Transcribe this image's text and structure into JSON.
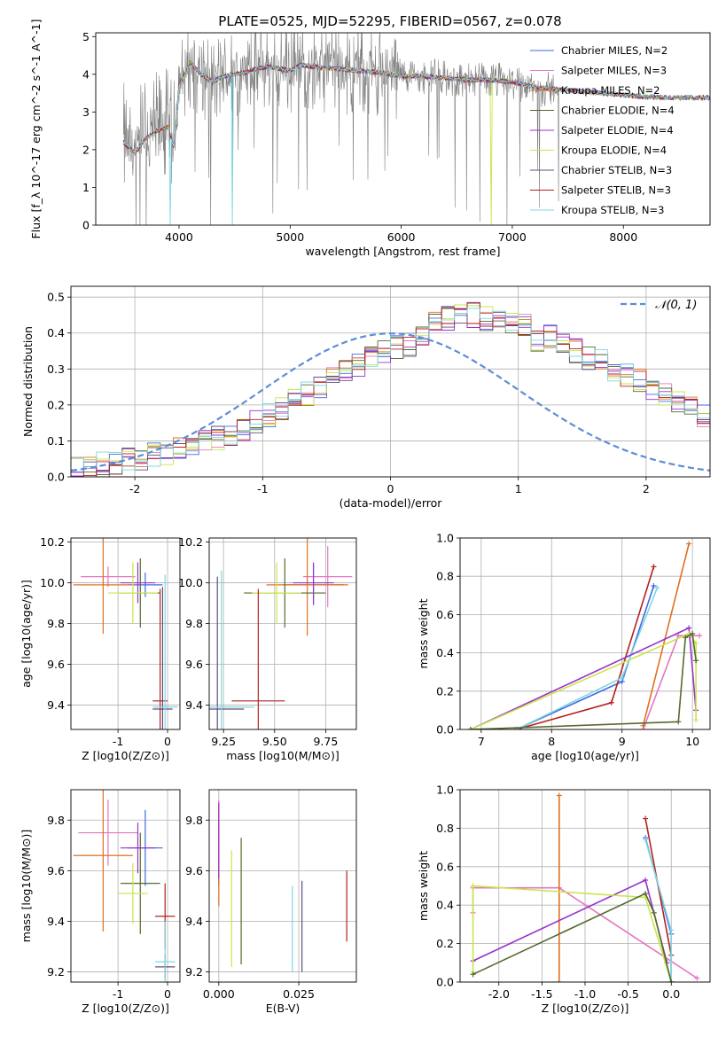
{
  "figure": {
    "title": "PLATE=0525, MJD=52295, FIBERID=0567, z=0.078"
  },
  "chart_data": [
    {
      "id": "spectrum",
      "type": "line",
      "xlabel": "wavelength [Angstrom, rest frame]",
      "ylabel": "Flux [f_λ 10^-17 erg cm^-2 s^-1 A^-1]",
      "xlim": [
        3250,
        8780
      ],
      "ylim": [
        0,
        5.1
      ],
      "xticks": [
        4000,
        5000,
        6000,
        7000,
        8000
      ],
      "yticks": [
        0,
        1,
        2,
        3,
        4,
        5
      ],
      "grid": false,
      "legend_position": "upper-right",
      "data_color": "#808080",
      "continuum": [
        [
          3500,
          2.2
        ],
        [
          3600,
          1.9
        ],
        [
          3700,
          2.3
        ],
        [
          3800,
          2.5
        ],
        [
          3900,
          2.6
        ],
        [
          3950,
          2.1
        ],
        [
          4000,
          3.7
        ],
        [
          4100,
          4.3
        ],
        [
          4200,
          4.0
        ],
        [
          4300,
          3.8
        ],
        [
          4400,
          3.95
        ],
        [
          4500,
          4.0
        ],
        [
          4600,
          4.05
        ],
        [
          4700,
          4.15
        ],
        [
          4800,
          4.2
        ],
        [
          4900,
          4.15
        ],
        [
          5000,
          4.1
        ],
        [
          5100,
          4.25
        ],
        [
          5200,
          4.2
        ],
        [
          5400,
          4.15
        ],
        [
          5600,
          4.1
        ],
        [
          5800,
          4.05
        ],
        [
          6000,
          3.95
        ],
        [
          6200,
          3.95
        ],
        [
          6400,
          3.9
        ],
        [
          6600,
          3.85
        ],
        [
          6800,
          3.85
        ],
        [
          7000,
          3.8
        ],
        [
          7200,
          3.65
        ],
        [
          7400,
          3.6
        ],
        [
          7600,
          3.55
        ],
        [
          7800,
          3.5
        ],
        [
          8000,
          3.45
        ],
        [
          8200,
          3.4
        ],
        [
          8400,
          3.38
        ]
      ],
      "series": [
        {
          "name": "Chabrier MILES, N_SSP=2",
          "color": "#4169e1"
        },
        {
          "name": "Salpeter MILES, N_SSP=3",
          "color": "#e377c2"
        },
        {
          "name": "Kroupa MILES, N_SSP=2",
          "color": "#e07020"
        },
        {
          "name": "Chabrier ELODIE, N_SSP=4",
          "color": "#556b2f"
        },
        {
          "name": "Salpeter ELODIE, N_SSP=4",
          "color": "#9932cc"
        },
        {
          "name": "Kroupa ELODIE, N_SSP=4",
          "color": "#c8e64a"
        },
        {
          "name": "Chabrier STELIB, N_SSP=3",
          "color": "#5f4f7f"
        },
        {
          "name": "Salpeter STELIB, N_SSP=3",
          "color": "#b22222"
        },
        {
          "name": "Kroupa STELIB, N_SSP=3",
          "color": "#7fd8e0"
        }
      ]
    },
    {
      "id": "residuals",
      "type": "line",
      "xlabel": "(data-model)/error",
      "ylabel": "Normed distribution",
      "xlim": [
        -2.5,
        2.5
      ],
      "ylim": [
        0,
        0.53
      ],
      "xticks": [
        -2,
        -1,
        0,
        1,
        2
      ],
      "yticks": [
        0.0,
        0.1,
        0.2,
        0.3,
        0.4,
        0.5
      ],
      "grid": true,
      "legend_position": "upper-right",
      "reference": {
        "name": "𝒩(0, 1)",
        "color": "#5b8ed6"
      },
      "bin_width": 0.1,
      "base_histogram": [
        0.025,
        0.03,
        0.035,
        0.04,
        0.045,
        0.05,
        0.06,
        0.065,
        0.075,
        0.085,
        0.095,
        0.11,
        0.12,
        0.135,
        0.15,
        0.17,
        0.19,
        0.21,
        0.23,
        0.25,
        0.27,
        0.29,
        0.31,
        0.33,
        0.35,
        0.36,
        0.37,
        0.39,
        0.43,
        0.44,
        0.45,
        0.45,
        0.44,
        0.43,
        0.42,
        0.42,
        0.38,
        0.39,
        0.37,
        0.35,
        0.33,
        0.32,
        0.3,
        0.28,
        0.27,
        0.25,
        0.23,
        0.21,
        0.19,
        0.17,
        0.15,
        0.13,
        0.12,
        0.1,
        0.09,
        0.08,
        0.07,
        0.06,
        0.05,
        0.045,
        0.04,
        0.035,
        0.03,
        0.025,
        0.02,
        0.02,
        0.018,
        0.016,
        0.015,
        0.014,
        0.013,
        0.012,
        0.011,
        0.01,
        0.01,
        0.01,
        0.01,
        0.01,
        0.01,
        0.01
      ]
    },
    {
      "id": "age-vs-Z",
      "type": "scatter",
      "xlabel": "Z [log10(Z/Z⊙)]",
      "ylabel": "age  [log10(age/yr)]",
      "xlim": [
        -1.95,
        0.25
      ],
      "ylim": [
        9.28,
        10.22
      ],
      "xticks": [
        -1,
        0
      ],
      "yticks": [
        9.4,
        9.6,
        9.8,
        10.0,
        10.2
      ],
      "grid": true,
      "points": [
        {
          "c": "#4169e1",
          "x": -0.45,
          "xe": 0.35,
          "y": 9.99,
          "ye": 0.06
        },
        {
          "c": "#e377c2",
          "x": -1.2,
          "xe": 0.55,
          "y": 10.03,
          "ye": 0.05
        },
        {
          "c": "#e07020",
          "x": -1.3,
          "xe": 0.6,
          "y": 9.99,
          "ye": 0.24
        },
        {
          "c": "#556b2f",
          "x": -0.55,
          "xe": 0.4,
          "y": 9.95,
          "ye": 0.17
        },
        {
          "c": "#9932cc",
          "x": -0.6,
          "xe": 0.35,
          "y": 10.0,
          "ye": 0.1
        },
        {
          "c": "#c8e64a",
          "x": -0.7,
          "xe": 0.5,
          "y": 9.95,
          "ye": 0.15
        },
        {
          "c": "#5f4f7f",
          "x": -0.1,
          "xe": 0.2,
          "y": 9.38,
          "ye": 0.6
        },
        {
          "c": "#b22222",
          "x": -0.15,
          "xe": 0.15,
          "y": 9.42,
          "ye": 0.55
        },
        {
          "c": "#7fd8e0",
          "x": -0.05,
          "xe": 0.25,
          "y": 9.39,
          "ye": 0.65
        }
      ]
    },
    {
      "id": "age-vs-mass",
      "type": "scatter",
      "xlabel": "mass [log10(M/M⊙)]",
      "ylabel": "",
      "xlim": [
        9.18,
        9.9
      ],
      "ylim": [
        9.28,
        10.22
      ],
      "xticks": [
        9.25,
        9.5,
        9.75
      ],
      "yticks": [
        9.4,
        9.6,
        9.8,
        10.0,
        10.2
      ],
      "grid": true,
      "points": [
        {
          "c": "#4169e1",
          "x": 9.69,
          "xe": 0.15,
          "y": 9.99,
          "ye": 0.1
        },
        {
          "c": "#e377c2",
          "x": 9.76,
          "xe": 0.12,
          "y": 10.03,
          "ye": 0.15
        },
        {
          "c": "#e07020",
          "x": 9.66,
          "xe": 0.2,
          "y": 9.99,
          "ye": 0.25
        },
        {
          "c": "#556b2f",
          "x": 9.55,
          "xe": 0.2,
          "y": 9.95,
          "ye": 0.17
        },
        {
          "c": "#9932cc",
          "x": 9.69,
          "xe": 0.1,
          "y": 10.0,
          "ye": 0.1
        },
        {
          "c": "#c8e64a",
          "x": 9.51,
          "xe": 0.12,
          "y": 9.95,
          "ye": 0.15
        },
        {
          "c": "#5f4f7f",
          "x": 9.22,
          "xe": 0.13,
          "y": 9.38,
          "ye": 0.65
        },
        {
          "c": "#b22222",
          "x": 9.42,
          "xe": 0.13,
          "y": 9.42,
          "ye": 0.55
        },
        {
          "c": "#7fd8e0",
          "x": 9.24,
          "xe": 0.16,
          "y": 9.39,
          "ye": 0.67
        }
      ]
    },
    {
      "id": "weight-vs-age",
      "type": "line",
      "xlabel": "age  [log10(age/yr)]",
      "ylabel": "mass weight",
      "xlim": [
        6.7,
        10.25
      ],
      "ylim": [
        0,
        1.0
      ],
      "xticks": [
        7,
        8,
        9,
        10
      ],
      "yticks": [
        0.0,
        0.2,
        0.4,
        0.6,
        0.8,
        1.0
      ],
      "grid": true,
      "lines": [
        {
          "c": "#e377c2",
          "pts": [
            [
              9.3,
              0
            ],
            [
              9.8,
              0.49
            ],
            [
              10.1,
              0.49
            ]
          ]
        },
        {
          "c": "#e07020",
          "pts": [
            [
              9.3,
              0.02
            ],
            [
              9.95,
              0.97
            ]
          ]
        },
        {
          "c": "#4169e1",
          "pts": [
            [
              7.5,
              0
            ],
            [
              9.0,
              0.25
            ],
            [
              9.45,
              0.75
            ]
          ]
        },
        {
          "c": "#b22222",
          "pts": [
            [
              7.5,
              0
            ],
            [
              8.85,
              0.14
            ],
            [
              9.45,
              0.85
            ]
          ]
        },
        {
          "c": "#7fd8e0",
          "pts": [
            [
              7.5,
              0
            ],
            [
              9.0,
              0.27
            ],
            [
              9.5,
              0.74
            ]
          ]
        },
        {
          "c": "#9932cc",
          "pts": [
            [
              6.85,
              0
            ],
            [
              9.95,
              0.53
            ],
            [
              10.05,
              0.1
            ]
          ]
        },
        {
          "c": "#c8e64a",
          "pts": [
            [
              6.85,
              0
            ],
            [
              9.95,
              0.5
            ],
            [
              10.05,
              0.45
            ],
            [
              10.05,
              0.05
            ]
          ]
        },
        {
          "c": "#556b2f",
          "pts": [
            [
              6.85,
              0
            ],
            [
              9.8,
              0.04
            ],
            [
              9.9,
              0.48
            ],
            [
              10.0,
              0.5
            ],
            [
              10.05,
              0.36
            ]
          ]
        }
      ]
    },
    {
      "id": "mass-vs-Z",
      "type": "scatter",
      "xlabel": "Z [log10(Z/Z⊙)]",
      "ylabel": "mass [log10(M/M⊙)]",
      "xlim": [
        -1.95,
        0.25
      ],
      "ylim": [
        9.16,
        9.92
      ],
      "xticks": [
        -1,
        0
      ],
      "yticks": [
        9.2,
        9.4,
        9.6,
        9.8
      ],
      "grid": true,
      "points": [
        {
          "c": "#4169e1",
          "x": -0.45,
          "xe": 0.35,
          "y": 9.69,
          "ye": 0.15
        },
        {
          "c": "#e377c2",
          "x": -1.2,
          "xe": 0.6,
          "y": 9.75,
          "ye": 0.13
        },
        {
          "c": "#e07020",
          "x": -1.3,
          "xe": 0.6,
          "y": 9.66,
          "ye": 0.3
        },
        {
          "c": "#556b2f",
          "x": -0.55,
          "xe": 0.4,
          "y": 9.55,
          "ye": 0.2
        },
        {
          "c": "#9932cc",
          "x": -0.6,
          "xe": 0.35,
          "y": 9.69,
          "ye": 0.1
        },
        {
          "c": "#c8e64a",
          "x": -0.7,
          "xe": 0.3,
          "y": 9.51,
          "ye": 0.12
        },
        {
          "c": "#5f4f7f",
          "x": -0.05,
          "xe": 0.2,
          "y": 9.22,
          "ye": 0.05
        },
        {
          "c": "#b22222",
          "x": -0.05,
          "xe": 0.2,
          "y": 9.42,
          "ye": 0.13
        },
        {
          "c": "#7fd8e0",
          "x": -0.05,
          "xe": 0.2,
          "y": 9.24,
          "ye": 0.16
        }
      ]
    },
    {
      "id": "mass-vs-EBV",
      "type": "scatter",
      "xlabel": "E(B-V)",
      "ylabel": "",
      "xlim": [
        -0.003,
        0.043
      ],
      "ylim": [
        9.16,
        9.92
      ],
      "xticks": [
        0.0,
        0.025
      ],
      "yticks": [
        9.2,
        9.4,
        9.6,
        9.8
      ],
      "grid": true,
      "points": [
        {
          "c": "#4169e1",
          "x": 0.0,
          "y": 9.69,
          "ye": 0.15
        },
        {
          "c": "#e377c2",
          "x": 0.0,
          "y": 9.75,
          "ye": 0.13
        },
        {
          "c": "#e07020",
          "x": 0.0,
          "y": 9.66,
          "ye": 0.2
        },
        {
          "c": "#556b2f",
          "x": 0.007,
          "y": 9.48,
          "ye": 0.25
        },
        {
          "c": "#9932cc",
          "x": 0.0,
          "y": 9.72,
          "ye": 0.15
        },
        {
          "c": "#c8e64a",
          "x": 0.004,
          "y": 9.45,
          "ye": 0.23
        },
        {
          "c": "#5f4f7f",
          "x": 0.026,
          "y": 9.38,
          "ye": 0.18
        },
        {
          "c": "#b22222",
          "x": 0.04,
          "y": 9.46,
          "ye": 0.14
        },
        {
          "c": "#7fd8e0",
          "x": 0.023,
          "y": 9.37,
          "ye": 0.17
        }
      ]
    },
    {
      "id": "weight-vs-Z",
      "type": "line",
      "xlabel": "Z [log10(Z/Z⊙)]",
      "ylabel": "mass weight",
      "xlim": [
        -2.45,
        0.45
      ],
      "ylim": [
        0,
        1.0
      ],
      "xticks": [
        -2.0,
        -1.5,
        -1.0,
        -0.5,
        0.0
      ],
      "yticks": [
        0.0,
        0.2,
        0.4,
        0.6,
        0.8,
        1.0
      ],
      "grid": true,
      "lines": [
        {
          "c": "#e377c2",
          "pts": [
            [
              -2.3,
              0.36
            ],
            [
              -2.3,
              0.49
            ],
            [
              -1.3,
              0.49
            ],
            [
              0.3,
              0.02
            ]
          ]
        },
        {
          "c": "#e07020",
          "pts": [
            [
              -1.3,
              0
            ],
            [
              -1.3,
              0.97
            ]
          ]
        },
        {
          "c": "#4169e1",
          "pts": [
            [
              -0.3,
              0.75
            ],
            [
              0.0,
              0.25
            ],
            [
              0.0,
              0
            ]
          ]
        },
        {
          "c": "#b22222",
          "pts": [
            [
              -0.3,
              0.85
            ],
            [
              0.0,
              0.14
            ],
            [
              0.0,
              0
            ]
          ]
        },
        {
          "c": "#7fd8e0",
          "pts": [
            [
              -0.3,
              0.74
            ],
            [
              0.0,
              0.27
            ],
            [
              0.0,
              0
            ]
          ]
        },
        {
          "c": "#9932cc",
          "pts": [
            [
              -2.3,
              0.11
            ],
            [
              -0.3,
              0.53
            ],
            [
              -0.05,
              0.1
            ]
          ]
        },
        {
          "c": "#c8e64a",
          "pts": [
            [
              -2.3,
              0.05
            ],
            [
              -2.3,
              0.5
            ],
            [
              -0.3,
              0.44
            ],
            [
              0.0,
              0
            ]
          ]
        },
        {
          "c": "#556b2f",
          "pts": [
            [
              -2.3,
              0.04
            ],
            [
              -0.3,
              0.46
            ],
            [
              -0.2,
              0.36
            ],
            [
              0.0,
              0
            ]
          ]
        }
      ]
    }
  ]
}
